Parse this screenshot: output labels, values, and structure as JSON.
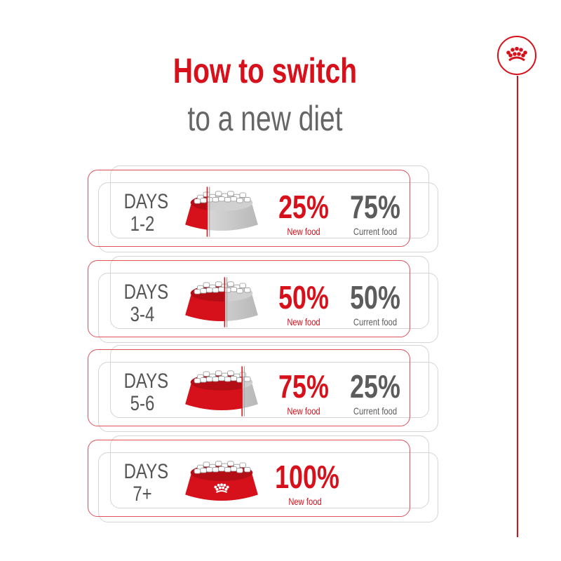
{
  "title": {
    "line1": "How to switch",
    "line2": "to a new diet"
  },
  "colors": {
    "brand_red": "#d7111b",
    "gray_text": "#5c5c5c",
    "outline_gray": "#d5d5d5"
  },
  "logo": {
    "icon": "crown-icon"
  },
  "steps": [
    {
      "days_label": "DAYS",
      "days_range": "1-2",
      "new_pct": "25%",
      "new_label": "New food",
      "current_pct": "75%",
      "current_label": "Current food",
      "new_fraction": 0.25
    },
    {
      "days_label": "DAYS",
      "days_range": "3-4",
      "new_pct": "50%",
      "new_label": "New food",
      "current_pct": "50%",
      "current_label": "Current food",
      "new_fraction": 0.5
    },
    {
      "days_label": "DAYS",
      "days_range": "5-6",
      "new_pct": "75%",
      "new_label": "New food",
      "current_pct": "25%",
      "current_label": "Current food",
      "new_fraction": 0.75
    },
    {
      "days_label": "DAYS",
      "days_range": "7+",
      "new_pct": "100%",
      "new_label": "New food",
      "new_fraction": 1
    }
  ]
}
